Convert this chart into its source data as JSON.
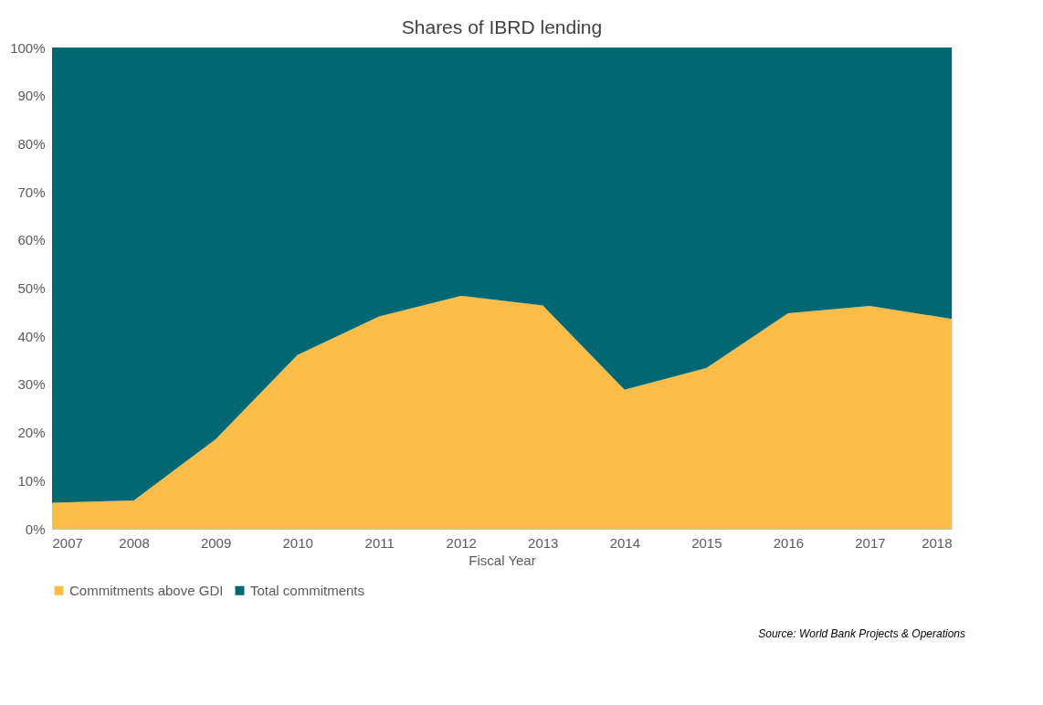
{
  "chart_data": {
    "type": "area",
    "title": "Shares of IBRD lending",
    "xlabel": "Fiscal Year",
    "x": [
      2007,
      2008,
      2009,
      2010,
      2011,
      2012,
      2013,
      2014,
      2015,
      2016,
      2017,
      2018
    ],
    "stacked": true,
    "series": [
      {
        "name": "Commitments above GDI",
        "color": "#fbbd48",
        "values": [
          5.4,
          5.9,
          18.6,
          36.1,
          44.1,
          48.4,
          46.4,
          28.9,
          33.4,
          44.8,
          46.3,
          43.6
        ]
      },
      {
        "name": "Total commitments",
        "color": "#006773",
        "values": [
          94.6,
          94.1,
          81.4,
          63.9,
          55.9,
          51.6,
          53.6,
          71.1,
          66.6,
          55.2,
          53.7,
          56.4
        ]
      }
    ],
    "xlim": [
      2007,
      2018
    ],
    "xticks": [
      2007,
      2008,
      2009,
      2010,
      2011,
      2012,
      2013,
      2014,
      2015,
      2016,
      2017,
      2018
    ],
    "ylim": [
      0,
      100
    ],
    "yticks": [
      {
        "value": 0,
        "label": "0%"
      },
      {
        "value": 10,
        "label": "10%"
      },
      {
        "value": 20,
        "label": "20%"
      },
      {
        "value": 30,
        "label": "30%"
      },
      {
        "value": 40,
        "label": "40%"
      },
      {
        "value": 50,
        "label": "50%"
      },
      {
        "value": 60,
        "label": "60%"
      },
      {
        "value": 70,
        "label": "70%"
      },
      {
        "value": 80,
        "label": "80%"
      },
      {
        "value": 90,
        "label": "90%"
      },
      {
        "value": 100,
        "label": "100%"
      }
    ],
    "grid": false,
    "legend": "bottom",
    "annotations": [
      "Source: World Bank Projects & Operations"
    ]
  }
}
